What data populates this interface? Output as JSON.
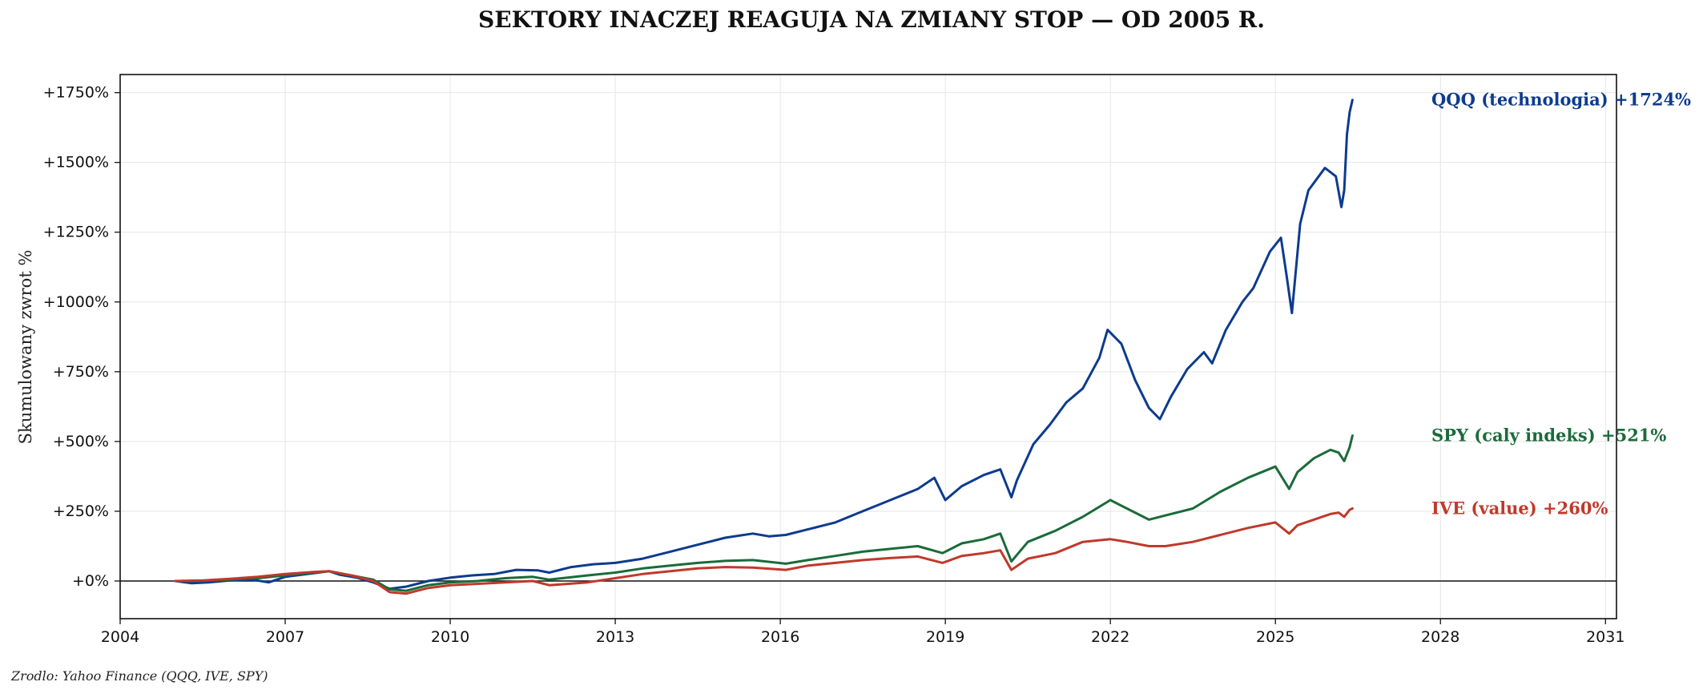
{
  "chart_data": {
    "type": "line",
    "title": "SEKTORY INACZEJ REAGUJA NA ZMIANY STOP — OD 2005 R.",
    "ylabel": "Skumulowany zwrot %",
    "xlabel": "",
    "source": "Zrodlo: Yahoo Finance (QQQ, IVE, SPY)",
    "xlim": [
      2004,
      2031.2
    ],
    "ylim": [
      -135,
      1815
    ],
    "x_ticks": [
      2004,
      2007,
      2010,
      2013,
      2016,
      2019,
      2022,
      2025,
      2028,
      2031
    ],
    "y_ticks": [
      0,
      250,
      500,
      750,
      1000,
      1250,
      1500,
      1750
    ],
    "x_tick_labels": [
      "2004",
      "2007",
      "2010",
      "2013",
      "2016",
      "2019",
      "2022",
      "2025",
      "2028",
      "2031"
    ],
    "y_tick_labels": [
      "+0%",
      "+250%",
      "+500%",
      "+750%",
      "+1000%",
      "+1250%",
      "+1500%",
      "+1750%"
    ],
    "grid": true,
    "zero_line": true,
    "series": [
      {
        "name": "QQQ (technologia)",
        "color": "#0d3b8e",
        "end_label": "QQQ (technologia)  +1724%",
        "x": [
          2005.0,
          2005.3,
          2005.6,
          2006.0,
          2006.4,
          2006.7,
          2007.0,
          2007.4,
          2007.8,
          2008.0,
          2008.3,
          2008.6,
          2008.9,
          2009.2,
          2009.6,
          2010.0,
          2010.4,
          2010.8,
          2011.2,
          2011.6,
          2011.8,
          2012.2,
          2012.6,
          2013.0,
          2013.5,
          2014.0,
          2014.5,
          2015.0,
          2015.5,
          2015.8,
          2016.1,
          2016.5,
          2017.0,
          2017.5,
          2018.0,
          2018.5,
          2018.8,
          2019.0,
          2019.3,
          2019.7,
          2020.0,
          2020.2,
          2020.3,
          2020.6,
          2020.9,
          2021.2,
          2021.5,
          2021.8,
          2021.95,
          2022.2,
          2022.45,
          2022.7,
          2022.9,
          2023.1,
          2023.4,
          2023.7,
          2023.85,
          2024.1,
          2024.4,
          2024.6,
          2024.9,
          2025.1,
          2025.2,
          2025.3,
          2025.45,
          2025.6,
          2025.9,
          2026.1,
          2026.2,
          2026.25,
          2026.3,
          2026.35,
          2026.4
        ],
        "y": [
          0,
          -8,
          -5,
          2,
          5,
          -5,
          15,
          25,
          35,
          22,
          12,
          -5,
          -28,
          -20,
          0,
          12,
          20,
          25,
          40,
          38,
          30,
          50,
          60,
          65,
          80,
          105,
          130,
          155,
          170,
          160,
          165,
          185,
          210,
          250,
          290,
          330,
          370,
          290,
          340,
          380,
          400,
          300,
          360,
          490,
          560,
          640,
          690,
          800,
          900,
          850,
          720,
          620,
          580,
          660,
          760,
          820,
          780,
          900,
          1000,
          1050,
          1180,
          1230,
          1100,
          960,
          1280,
          1400,
          1480,
          1450,
          1340,
          1400,
          1600,
          1680,
          1724
        ]
      },
      {
        "name": "SPY (caly indeks)",
        "color": "#1b6b3a",
        "end_label": "SPY (caly indeks)  +521%",
        "x": [
          2005.0,
          2005.5,
          2006.0,
          2006.5,
          2007.0,
          2007.5,
          2007.8,
          2008.2,
          2008.6,
          2008.9,
          2009.2,
          2009.6,
          2010.0,
          2010.5,
          2011.0,
          2011.5,
          2011.8,
          2012.5,
          2013.0,
          2013.5,
          2014.0,
          2014.5,
          2015.0,
          2015.5,
          2016.1,
          2016.5,
          2017.0,
          2017.5,
          2018.0,
          2018.5,
          2018.95,
          2019.3,
          2019.7,
          2020.0,
          2020.2,
          2020.5,
          2021.0,
          2021.5,
          2022.0,
          2022.3,
          2022.7,
          2023.0,
          2023.5,
          2024.0,
          2024.5,
          2025.0,
          2025.25,
          2025.4,
          2025.7,
          2026.0,
          2026.15,
          2026.25,
          2026.35,
          2026.4
        ],
        "y": [
          0,
          0,
          5,
          10,
          20,
          30,
          35,
          20,
          5,
          -30,
          -35,
          -15,
          -5,
          0,
          10,
          15,
          5,
          20,
          30,
          45,
          55,
          65,
          72,
          75,
          62,
          75,
          90,
          105,
          115,
          125,
          100,
          135,
          150,
          170,
          70,
          140,
          180,
          230,
          290,
          260,
          220,
          235,
          260,
          320,
          370,
          410,
          330,
          390,
          440,
          470,
          460,
          430,
          480,
          521
        ]
      },
      {
        "name": "IVE (value)",
        "color": "#c0392b",
        "end_label": "IVE (value)  +260%",
        "x": [
          2005.0,
          2005.5,
          2006.0,
          2006.5,
          2007.0,
          2007.5,
          2007.8,
          2008.2,
          2008.6,
          2008.9,
          2009.2,
          2009.6,
          2010.0,
          2010.5,
          2011.0,
          2011.5,
          2011.8,
          2012.5,
          2013.0,
          2013.5,
          2014.0,
          2014.5,
          2015.0,
          2015.5,
          2016.1,
          2016.5,
          2017.0,
          2017.5,
          2018.0,
          2018.5,
          2018.95,
          2019.3,
          2019.7,
          2020.0,
          2020.2,
          2020.5,
          2021.0,
          2021.5,
          2022.0,
          2022.3,
          2022.7,
          2023.0,
          2023.5,
          2024.0,
          2024.5,
          2025.0,
          2025.25,
          2025.4,
          2025.7,
          2026.0,
          2026.15,
          2026.25,
          2026.35,
          2026.4
        ],
        "y": [
          0,
          2,
          8,
          15,
          25,
          32,
          35,
          20,
          0,
          -40,
          -45,
          -25,
          -15,
          -10,
          -5,
          0,
          -15,
          -5,
          10,
          25,
          35,
          45,
          50,
          48,
          40,
          55,
          65,
          75,
          82,
          88,
          65,
          90,
          100,
          110,
          40,
          80,
          100,
          140,
          150,
          140,
          125,
          125,
          140,
          165,
          190,
          210,
          170,
          200,
          220,
          240,
          245,
          230,
          255,
          260
        ]
      }
    ]
  }
}
